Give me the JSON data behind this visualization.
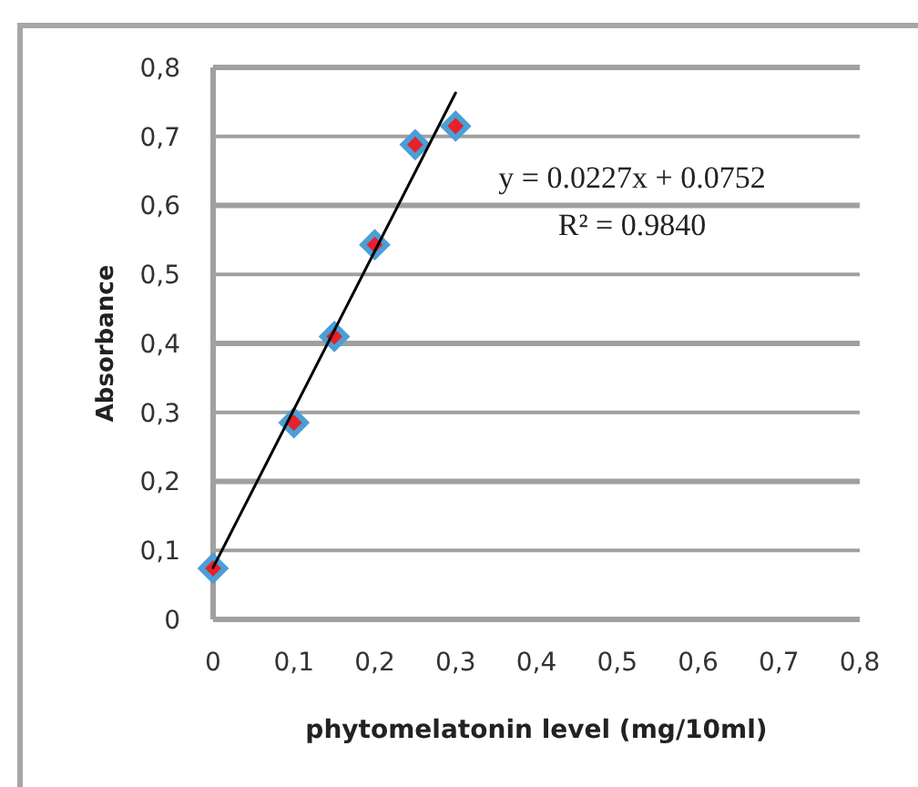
{
  "chart_data": {
    "type": "scatter",
    "xlabel": "phytomelatonin level (mg/10ml)",
    "ylabel": "Absorbance",
    "xlim": [
      0,
      0.8
    ],
    "xticks": [
      {
        "value": 0,
        "label": "0"
      },
      {
        "value": 0.1,
        "label": "0,1"
      },
      {
        "value": 0.2,
        "label": "0,2"
      },
      {
        "value": 0.3,
        "label": "0,3"
      },
      {
        "value": 0.4,
        "label": "0,4"
      },
      {
        "value": 0.5,
        "label": "0,5"
      },
      {
        "value": 0.6,
        "label": "0,6"
      },
      {
        "value": 0.7,
        "label": "0,7"
      },
      {
        "value": 0.8,
        "label": "0,8"
      }
    ],
    "ylim": [
      0,
      0.8
    ],
    "yticks": [
      {
        "value": 0,
        "label": "0"
      },
      {
        "value": 0.1,
        "label": "0,1"
      },
      {
        "value": 0.2,
        "label": "0,2"
      },
      {
        "value": 0.3,
        "label": "0,3"
      },
      {
        "value": 0.4,
        "label": "0,4"
      },
      {
        "value": 0.5,
        "label": "0,5"
      },
      {
        "value": 0.6,
        "label": "0,6"
      },
      {
        "value": 0.7,
        "label": "0,7"
      },
      {
        "value": 0.8,
        "label": "0,8"
      }
    ],
    "grid": "y",
    "marker": "diamond",
    "series": [
      {
        "color": "#4a9fd6",
        "x": [
          0,
          0.1,
          0.15,
          0.2,
          0.25,
          0.3
        ],
        "values": [
          0.074,
          0.285,
          0.41,
          0.543,
          0.688,
          0.715
        ]
      },
      {
        "type": "line",
        "color": "#000000",
        "x": [
          0,
          0.3
        ],
        "values": [
          0.075,
          0.763
        ],
        "marker": "none"
      }
    ],
    "annotations": [
      "y = 0.0227x + 0.0752",
      "R² = 0.9840"
    ]
  }
}
